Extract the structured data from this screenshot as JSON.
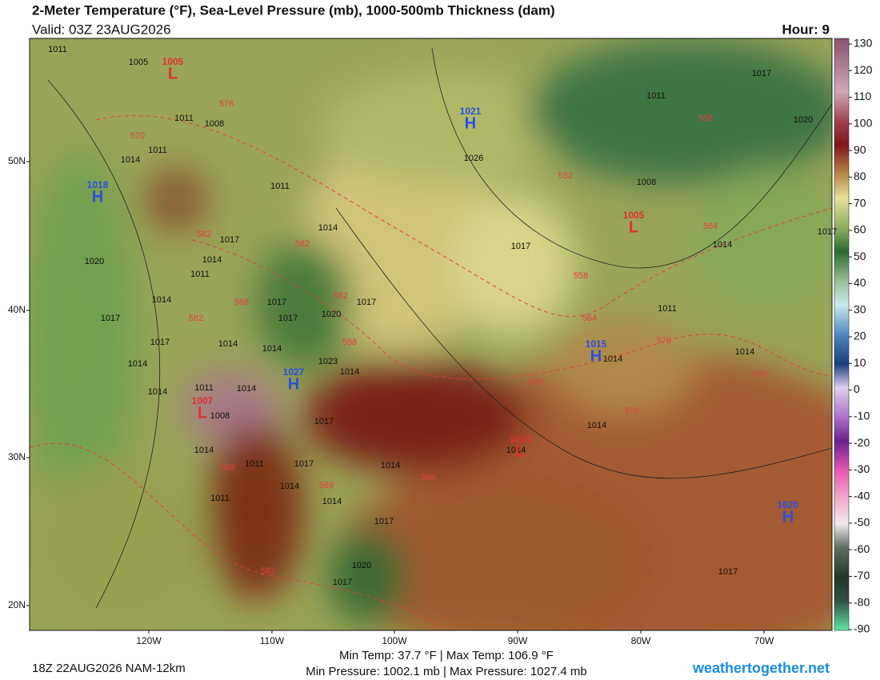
{
  "header": {
    "title": "2-Meter Temperature (°F), Sea-Level Pressure (mb), 1000-500mb Thickness (dam)",
    "valid": "Valid: 03Z 23AUG2026",
    "hour": "Hour: 9"
  },
  "map": {
    "lat_labels": [
      "50N",
      "40N",
      "30N",
      "20N"
    ],
    "lon_labels": [
      "120W",
      "110W",
      "100W",
      "90W",
      "80W",
      "70W"
    ],
    "centers": [
      {
        "symbol": "H",
        "pressure": "1021"
      },
      {
        "symbol": "H",
        "pressure": "1018"
      },
      {
        "symbol": "H",
        "pressure": "1027"
      },
      {
        "symbol": "H",
        "pressure": "1015"
      },
      {
        "symbol": "H",
        "pressure": "1020"
      },
      {
        "symbol": "L",
        "pressure": "1005"
      },
      {
        "symbol": "L",
        "pressure": "1005"
      },
      {
        "symbol": "L",
        "pressure": "1007"
      },
      {
        "symbol": "L",
        "pressure": "1014"
      }
    ],
    "isobar_labels": [
      "1011",
      "1005",
      "1011",
      "1008",
      "1011",
      "1014",
      "1011",
      "1014",
      "1017",
      "1014",
      "1011",
      "1020",
      "1017",
      "1014",
      "1017",
      "1014",
      "1014",
      "1011",
      "1014",
      "1014",
      "1017",
      "1017",
      "1020",
      "1014",
      "1023",
      "1014",
      "1017",
      "1017",
      "1008",
      "1014",
      "1011",
      "1017",
      "1014",
      "1014",
      "1014",
      "1011",
      "1017",
      "1020",
      "1017",
      "1017",
      "1008",
      "1014",
      "1011",
      "1014",
      "1014",
      "1014",
      "1017",
      "1026",
      "1011",
      "1017",
      "1020",
      "1017",
      "1014"
    ],
    "thickness_labels": [
      "576",
      "570",
      "582",
      "582",
      "588",
      "582",
      "582",
      "588",
      "564",
      "570",
      "576",
      "558",
      "552",
      "558",
      "564",
      "576",
      "576",
      "588",
      "588",
      "588",
      "582"
    ]
  },
  "colorbar": {
    "ticks": [
      130,
      120,
      110,
      100,
      90,
      80,
      70,
      60,
      50,
      40,
      30,
      20,
      10,
      0,
      -10,
      -20,
      -30,
      -40,
      -50,
      -60,
      -70,
      -80,
      -90
    ]
  },
  "footer": {
    "run": "18Z 22AUG2026 NAM-12km",
    "temp_range": "Min Temp: 37.7 °F | Max Temp: 106.9 °F",
    "pressure_range": "Min Pressure: 1002.1 mb | Max Pressure: 1027.4 mb",
    "site": "weathertogether.net"
  }
}
